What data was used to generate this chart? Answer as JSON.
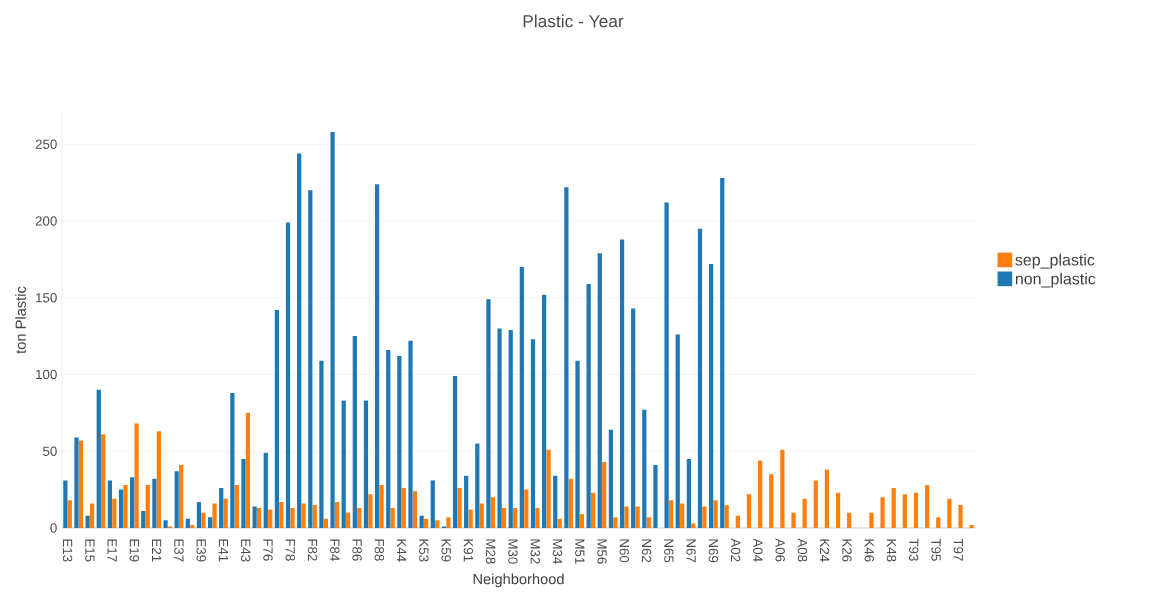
{
  "chart_data": {
    "type": "bar",
    "title": "Plastic - Year",
    "xlabel": "Neighborhood",
    "ylabel": "ton Plastic",
    "categories": [
      "E13",
      null,
      "E15",
      null,
      "E17",
      null,
      "E19",
      null,
      "E21",
      null,
      "E37",
      null,
      "E39",
      null,
      "E41",
      null,
      "E43",
      null,
      "F76",
      null,
      "F78",
      null,
      "F82",
      null,
      "F84",
      null,
      "F86",
      null,
      "F88",
      null,
      "K44",
      null,
      "K53",
      null,
      "K59",
      null,
      "K91",
      null,
      "M28",
      null,
      "M30",
      null,
      "M32",
      null,
      "M34",
      null,
      "M51",
      null,
      "M56",
      null,
      "N60",
      null,
      "N62",
      null,
      "N65",
      null,
      "N67",
      null,
      "N69",
      null,
      "A02",
      null,
      "A04",
      null,
      "A06",
      null,
      "A08",
      null,
      "K24",
      null,
      "K26",
      null,
      "K46",
      null,
      "K48",
      null,
      "T93",
      null,
      "T95",
      null,
      "T97",
      null
    ],
    "series": [
      {
        "name": "sep_plastic",
        "color": "#ff7f0e",
        "values": [
          18,
          57,
          16,
          61,
          19,
          28,
          68,
          28,
          63,
          1,
          41,
          2,
          10,
          16,
          19,
          28,
          75,
          13,
          12,
          17,
          13,
          16,
          15,
          6,
          17,
          10,
          13,
          22,
          28,
          13,
          26,
          24,
          6,
          5,
          7,
          26,
          12,
          16,
          20,
          13,
          13,
          25,
          13,
          51,
          6,
          32,
          9,
          23,
          43,
          7,
          14,
          14,
          7,
          null,
          18,
          16,
          3,
          14,
          18,
          15,
          8,
          22,
          44,
          35,
          51,
          10,
          19,
          31,
          38,
          23,
          10,
          null,
          10,
          20,
          26,
          22,
          23,
          28,
          7,
          19,
          15,
          2
        ]
      },
      {
        "name": "non_plastic",
        "color": "#1f77b4",
        "values": [
          31,
          59,
          8,
          90,
          31,
          25,
          33,
          11,
          32,
          5,
          37,
          6,
          17,
          7,
          26,
          88,
          45,
          14,
          49,
          142,
          199,
          244,
          220,
          109,
          258,
          83,
          125,
          83,
          224,
          116,
          112,
          122,
          8,
          31,
          1,
          99,
          34,
          55,
          149,
          130,
          129,
          170,
          123,
          152,
          34,
          222,
          109,
          159,
          179,
          64,
          188,
          143,
          77,
          41,
          212,
          126,
          45,
          195,
          172,
          228,
          null,
          null,
          null,
          null,
          null,
          null,
          null,
          null,
          null,
          null,
          null,
          null,
          null,
          null,
          null,
          null,
          null,
          null,
          null,
          null,
          null,
          null
        ]
      }
    ],
    "ylim": [
      0,
      271
    ],
    "yticks": [
      0,
      50,
      100,
      150,
      200,
      250
    ],
    "grid": "y",
    "legend": "right"
  }
}
